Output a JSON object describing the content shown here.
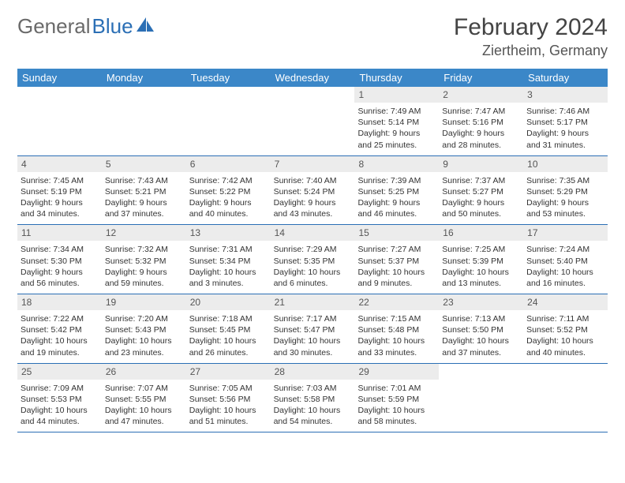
{
  "logo": {
    "text1": "General",
    "text2": "Blue"
  },
  "title": "February 2024",
  "location": "Ziertheim, Germany",
  "colors": {
    "header_bg": "#3b87c8",
    "header_text": "#ffffff",
    "daynum_bg": "#ececec",
    "border": "#2b6fb5",
    "logo_gray": "#6a6a6a",
    "logo_blue": "#2b6fb5"
  },
  "day_labels": [
    "Sunday",
    "Monday",
    "Tuesday",
    "Wednesday",
    "Thursday",
    "Friday",
    "Saturday"
  ],
  "weeks": [
    [
      {
        "n": "",
        "sr": "",
        "ss": "",
        "dl": ""
      },
      {
        "n": "",
        "sr": "",
        "ss": "",
        "dl": ""
      },
      {
        "n": "",
        "sr": "",
        "ss": "",
        "dl": ""
      },
      {
        "n": "",
        "sr": "",
        "ss": "",
        "dl": ""
      },
      {
        "n": "1",
        "sr": "Sunrise: 7:49 AM",
        "ss": "Sunset: 5:14 PM",
        "dl": "Daylight: 9 hours and 25 minutes."
      },
      {
        "n": "2",
        "sr": "Sunrise: 7:47 AM",
        "ss": "Sunset: 5:16 PM",
        "dl": "Daylight: 9 hours and 28 minutes."
      },
      {
        "n": "3",
        "sr": "Sunrise: 7:46 AM",
        "ss": "Sunset: 5:17 PM",
        "dl": "Daylight: 9 hours and 31 minutes."
      }
    ],
    [
      {
        "n": "4",
        "sr": "Sunrise: 7:45 AM",
        "ss": "Sunset: 5:19 PM",
        "dl": "Daylight: 9 hours and 34 minutes."
      },
      {
        "n": "5",
        "sr": "Sunrise: 7:43 AM",
        "ss": "Sunset: 5:21 PM",
        "dl": "Daylight: 9 hours and 37 minutes."
      },
      {
        "n": "6",
        "sr": "Sunrise: 7:42 AM",
        "ss": "Sunset: 5:22 PM",
        "dl": "Daylight: 9 hours and 40 minutes."
      },
      {
        "n": "7",
        "sr": "Sunrise: 7:40 AM",
        "ss": "Sunset: 5:24 PM",
        "dl": "Daylight: 9 hours and 43 minutes."
      },
      {
        "n": "8",
        "sr": "Sunrise: 7:39 AM",
        "ss": "Sunset: 5:25 PM",
        "dl": "Daylight: 9 hours and 46 minutes."
      },
      {
        "n": "9",
        "sr": "Sunrise: 7:37 AM",
        "ss": "Sunset: 5:27 PM",
        "dl": "Daylight: 9 hours and 50 minutes."
      },
      {
        "n": "10",
        "sr": "Sunrise: 7:35 AM",
        "ss": "Sunset: 5:29 PM",
        "dl": "Daylight: 9 hours and 53 minutes."
      }
    ],
    [
      {
        "n": "11",
        "sr": "Sunrise: 7:34 AM",
        "ss": "Sunset: 5:30 PM",
        "dl": "Daylight: 9 hours and 56 minutes."
      },
      {
        "n": "12",
        "sr": "Sunrise: 7:32 AM",
        "ss": "Sunset: 5:32 PM",
        "dl": "Daylight: 9 hours and 59 minutes."
      },
      {
        "n": "13",
        "sr": "Sunrise: 7:31 AM",
        "ss": "Sunset: 5:34 PM",
        "dl": "Daylight: 10 hours and 3 minutes."
      },
      {
        "n": "14",
        "sr": "Sunrise: 7:29 AM",
        "ss": "Sunset: 5:35 PM",
        "dl": "Daylight: 10 hours and 6 minutes."
      },
      {
        "n": "15",
        "sr": "Sunrise: 7:27 AM",
        "ss": "Sunset: 5:37 PM",
        "dl": "Daylight: 10 hours and 9 minutes."
      },
      {
        "n": "16",
        "sr": "Sunrise: 7:25 AM",
        "ss": "Sunset: 5:39 PM",
        "dl": "Daylight: 10 hours and 13 minutes."
      },
      {
        "n": "17",
        "sr": "Sunrise: 7:24 AM",
        "ss": "Sunset: 5:40 PM",
        "dl": "Daylight: 10 hours and 16 minutes."
      }
    ],
    [
      {
        "n": "18",
        "sr": "Sunrise: 7:22 AM",
        "ss": "Sunset: 5:42 PM",
        "dl": "Daylight: 10 hours and 19 minutes."
      },
      {
        "n": "19",
        "sr": "Sunrise: 7:20 AM",
        "ss": "Sunset: 5:43 PM",
        "dl": "Daylight: 10 hours and 23 minutes."
      },
      {
        "n": "20",
        "sr": "Sunrise: 7:18 AM",
        "ss": "Sunset: 5:45 PM",
        "dl": "Daylight: 10 hours and 26 minutes."
      },
      {
        "n": "21",
        "sr": "Sunrise: 7:17 AM",
        "ss": "Sunset: 5:47 PM",
        "dl": "Daylight: 10 hours and 30 minutes."
      },
      {
        "n": "22",
        "sr": "Sunrise: 7:15 AM",
        "ss": "Sunset: 5:48 PM",
        "dl": "Daylight: 10 hours and 33 minutes."
      },
      {
        "n": "23",
        "sr": "Sunrise: 7:13 AM",
        "ss": "Sunset: 5:50 PM",
        "dl": "Daylight: 10 hours and 37 minutes."
      },
      {
        "n": "24",
        "sr": "Sunrise: 7:11 AM",
        "ss": "Sunset: 5:52 PM",
        "dl": "Daylight: 10 hours and 40 minutes."
      }
    ],
    [
      {
        "n": "25",
        "sr": "Sunrise: 7:09 AM",
        "ss": "Sunset: 5:53 PM",
        "dl": "Daylight: 10 hours and 44 minutes."
      },
      {
        "n": "26",
        "sr": "Sunrise: 7:07 AM",
        "ss": "Sunset: 5:55 PM",
        "dl": "Daylight: 10 hours and 47 minutes."
      },
      {
        "n": "27",
        "sr": "Sunrise: 7:05 AM",
        "ss": "Sunset: 5:56 PM",
        "dl": "Daylight: 10 hours and 51 minutes."
      },
      {
        "n": "28",
        "sr": "Sunrise: 7:03 AM",
        "ss": "Sunset: 5:58 PM",
        "dl": "Daylight: 10 hours and 54 minutes."
      },
      {
        "n": "29",
        "sr": "Sunrise: 7:01 AM",
        "ss": "Sunset: 5:59 PM",
        "dl": "Daylight: 10 hours and 58 minutes."
      },
      {
        "n": "",
        "sr": "",
        "ss": "",
        "dl": ""
      },
      {
        "n": "",
        "sr": "",
        "ss": "",
        "dl": ""
      }
    ]
  ]
}
